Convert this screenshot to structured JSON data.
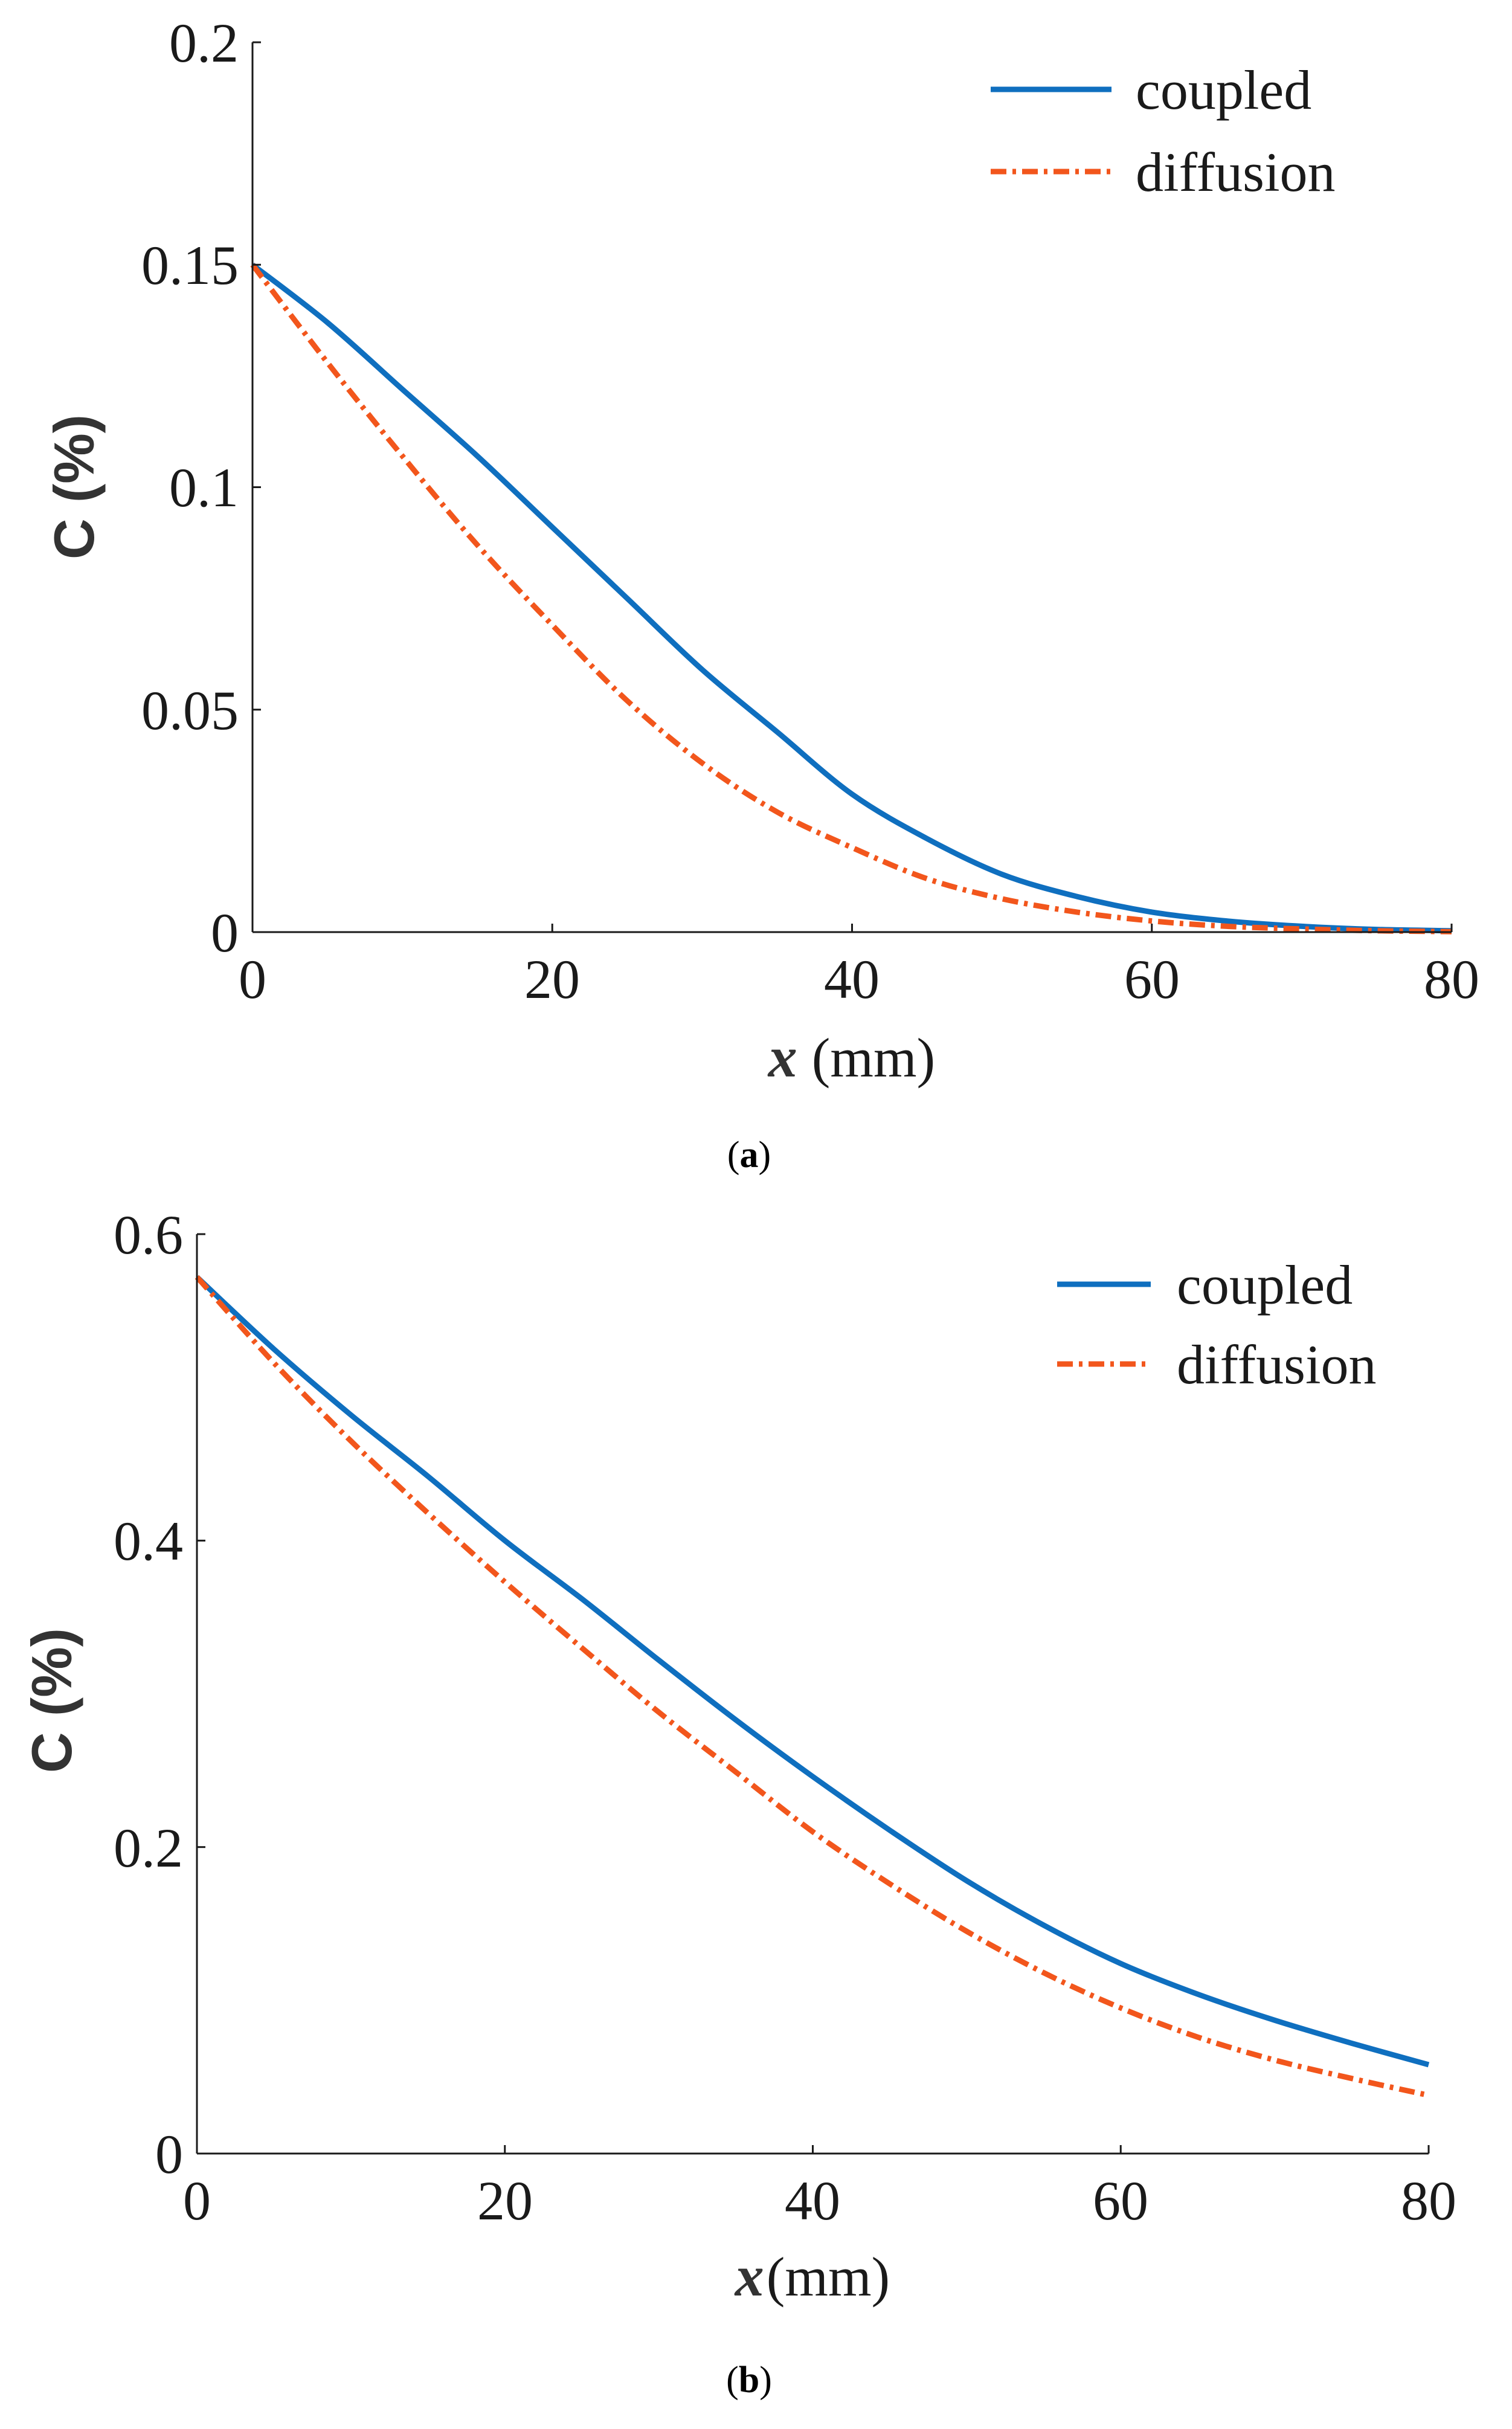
{
  "colors": {
    "coupled": "#0f6fbf",
    "diffusion": "#f2561c",
    "axis": "#1a1a1a"
  },
  "chart_data": [
    {
      "id": "a",
      "type": "line",
      "caption_letter": "a",
      "xlabel_var": "x",
      "xlabel_unit": "(mm)",
      "ylabel": "C (%)",
      "xlim": [
        0,
        80
      ],
      "ylim": [
        0,
        0.2
      ],
      "xticks": [
        0,
        20,
        40,
        60,
        80
      ],
      "xtick_labels": [
        "0",
        "20",
        "40",
        "60",
        "80"
      ],
      "yticks": [
        0,
        0.05,
        0.1,
        0.15,
        0.2
      ],
      "ytick_labels": [
        "0",
        "0.05",
        "0.1",
        "0.15",
        "0.2"
      ],
      "legend_position": "top-right",
      "series": [
        {
          "name": "coupled",
          "style": "solid",
          "x": [
            0,
            5,
            10,
            15,
            20,
            25,
            30,
            35,
            40,
            45,
            50,
            55,
            60,
            65,
            70,
            75,
            80
          ],
          "values": [
            0.15,
            0.137,
            0.122,
            0.107,
            0.091,
            0.075,
            0.059,
            0.045,
            0.031,
            0.021,
            0.013,
            0.008,
            0.0045,
            0.0025,
            0.0013,
            0.0006,
            0.0003
          ]
        },
        {
          "name": "diffusion",
          "style": "dashdot",
          "x": [
            0,
            5,
            10,
            15,
            20,
            25,
            30,
            35,
            40,
            45,
            50,
            55,
            60,
            65,
            70,
            75,
            80
          ],
          "values": [
            0.15,
            0.128,
            0.107,
            0.087,
            0.069,
            0.052,
            0.038,
            0.027,
            0.019,
            0.012,
            0.0075,
            0.0045,
            0.0025,
            0.0013,
            0.0007,
            0.0003,
            0.0001
          ]
        }
      ]
    },
    {
      "id": "b",
      "type": "line",
      "caption_letter": "b",
      "xlabel_var": "x",
      "xlabel_unit": "(mm)",
      "ylabel": "C (%)",
      "xlim": [
        0,
        80
      ],
      "ylim": [
        0,
        0.6
      ],
      "xticks": [
        0,
        20,
        40,
        60,
        80
      ],
      "xtick_labels": [
        "0",
        "20",
        "40",
        "60",
        "80"
      ],
      "yticks": [
        0,
        0.2,
        0.4,
        0.6
      ],
      "ytick_labels": [
        "0",
        "0.2",
        "0.4",
        "0.6"
      ],
      "legend_position": "top-right",
      "series": [
        {
          "name": "coupled",
          "style": "solid",
          "x": [
            0,
            5,
            10,
            15,
            20,
            25,
            30,
            35,
            40,
            45,
            50,
            55,
            60,
            65,
            70,
            75,
            80
          ],
          "values": [
            0.572,
            0.525,
            0.482,
            0.442,
            0.4,
            0.362,
            0.322,
            0.283,
            0.246,
            0.211,
            0.178,
            0.149,
            0.124,
            0.104,
            0.087,
            0.072,
            0.058
          ]
        },
        {
          "name": "diffusion",
          "style": "dashdot",
          "x": [
            0,
            5,
            10,
            15,
            20,
            25,
            30,
            35,
            40,
            45,
            50,
            55,
            60,
            65,
            70,
            75,
            80
          ],
          "values": [
            0.572,
            0.516,
            0.465,
            0.418,
            0.373,
            0.33,
            0.288,
            0.249,
            0.21,
            0.176,
            0.145,
            0.118,
            0.095,
            0.076,
            0.061,
            0.049,
            0.038
          ]
        }
      ]
    }
  ]
}
